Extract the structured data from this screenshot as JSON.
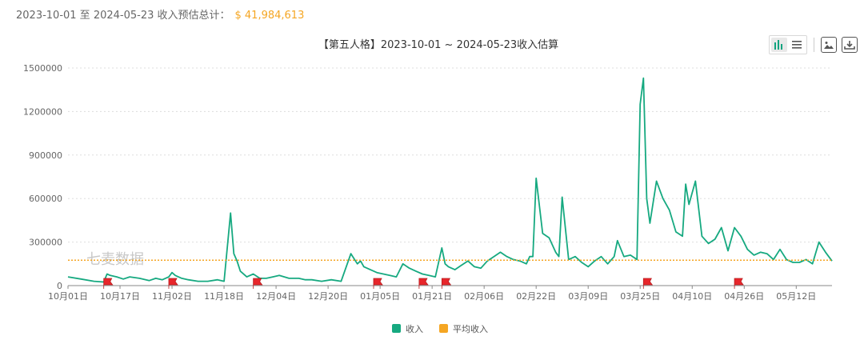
{
  "summary": {
    "date_range": "2023-10-01 至 2024-05-23 收入预估总计：",
    "total": "$ 41,984,613"
  },
  "toolbar": {
    "icons": [
      "bar-chart-icon",
      "list-icon",
      "image-icon",
      "download-icon"
    ],
    "active_color": "#10a37f"
  },
  "chart_data": {
    "type": "line",
    "title": "【第五人格】2023-10-01 ~ 2024-05-23收入估算",
    "watermark": "七麦数据",
    "xlabel": "",
    "ylabel": "",
    "x_range": [
      "2023-10-01",
      "2024-05-23"
    ],
    "x_ticks": [
      "10月01日",
      "10月17日",
      "11月02日",
      "11月18日",
      "12月04日",
      "12月20日",
      "01月05日",
      "01月21日",
      "02月06日",
      "02月22日",
      "03月09日",
      "03月25日",
      "04月10日",
      "04月26日",
      "05月12日"
    ],
    "y_ticks": [
      "0",
      "300000",
      "600000",
      "900000",
      "1200000",
      "1500000"
    ],
    "ylim": [
      0,
      1500000
    ],
    "grid": true,
    "legend_position": "bottom",
    "series": [
      {
        "name": "收入",
        "color": "#16a980",
        "x": [
          "2023-10-01",
          "2023-10-05",
          "2023-10-09",
          "2023-10-12",
          "2023-10-13",
          "2023-10-14",
          "2023-10-16",
          "2023-10-18",
          "2023-10-20",
          "2023-10-23",
          "2023-10-26",
          "2023-10-28",
          "2023-10-30",
          "2023-11-01",
          "2023-11-02",
          "2023-11-03",
          "2023-11-05",
          "2023-11-07",
          "2023-11-10",
          "2023-11-13",
          "2023-11-16",
          "2023-11-18",
          "2023-11-20",
          "2023-11-21",
          "2023-11-22",
          "2023-11-23",
          "2023-11-25",
          "2023-11-27",
          "2023-11-29",
          "2023-12-01",
          "2023-12-03",
          "2023-12-05",
          "2023-12-08",
          "2023-12-11",
          "2023-12-13",
          "2023-12-15",
          "2023-12-18",
          "2023-12-21",
          "2023-12-24",
          "2023-12-27",
          "2023-12-29",
          "2023-12-30",
          "2023-12-31",
          "2024-01-02",
          "2024-01-04",
          "2024-01-06",
          "2024-01-08",
          "2024-01-10",
          "2024-01-12",
          "2024-01-14",
          "2024-01-16",
          "2024-01-18",
          "2024-01-20",
          "2024-01-22",
          "2024-01-24",
          "2024-01-25",
          "2024-01-26",
          "2024-01-28",
          "2024-01-30",
          "2024-02-01",
          "2024-02-03",
          "2024-02-05",
          "2024-02-07",
          "2024-02-09",
          "2024-02-11",
          "2024-02-13",
          "2024-02-15",
          "2024-02-17",
          "2024-02-19",
          "2024-02-20",
          "2024-02-21",
          "2024-02-22",
          "2024-02-24",
          "2024-02-26",
          "2024-02-28",
          "2024-02-29",
          "2024-03-01",
          "2024-03-03",
          "2024-03-05",
          "2024-03-07",
          "2024-03-09",
          "2024-03-11",
          "2024-03-13",
          "2024-03-15",
          "2024-03-17",
          "2024-03-18",
          "2024-03-20",
          "2024-03-22",
          "2024-03-24",
          "2024-03-25",
          "2024-03-26",
          "2024-03-27",
          "2024-03-28",
          "2024-03-30",
          "2024-04-01",
          "2024-04-03",
          "2024-04-05",
          "2024-04-07",
          "2024-04-08",
          "2024-04-09",
          "2024-04-11",
          "2024-04-13",
          "2024-04-15",
          "2024-04-17",
          "2024-04-19",
          "2024-04-21",
          "2024-04-23",
          "2024-04-25",
          "2024-04-27",
          "2024-04-29",
          "2024-05-01",
          "2024-05-03",
          "2024-05-05",
          "2024-05-07",
          "2024-05-09",
          "2024-05-11",
          "2024-05-13",
          "2024-05-15",
          "2024-05-17",
          "2024-05-19",
          "2024-05-21",
          "2024-05-23"
        ],
        "values": [
          60000,
          45000,
          30000,
          25000,
          80000,
          70000,
          60000,
          45000,
          60000,
          50000,
          35000,
          50000,
          40000,
          60000,
          90000,
          70000,
          50000,
          40000,
          30000,
          30000,
          40000,
          30000,
          500000,
          220000,
          170000,
          100000,
          60000,
          80000,
          50000,
          50000,
          60000,
          70000,
          50000,
          50000,
          40000,
          40000,
          30000,
          40000,
          30000,
          220000,
          150000,
          170000,
          130000,
          110000,
          90000,
          80000,
          70000,
          60000,
          150000,
          120000,
          100000,
          80000,
          70000,
          60000,
          260000,
          150000,
          130000,
          110000,
          140000,
          170000,
          130000,
          120000,
          170000,
          200000,
          230000,
          200000,
          180000,
          170000,
          150000,
          200000,
          200000,
          740000,
          360000,
          330000,
          230000,
          200000,
          610000,
          180000,
          200000,
          160000,
          130000,
          170000,
          200000,
          150000,
          200000,
          310000,
          200000,
          210000,
          180000,
          1250000,
          1430000,
          600000,
          430000,
          720000,
          600000,
          520000,
          370000,
          340000,
          700000,
          560000,
          720000,
          340000,
          290000,
          320000,
          400000,
          240000,
          400000,
          340000,
          250000,
          210000,
          230000,
          220000,
          180000,
          250000,
          180000,
          160000,
          160000,
          180000,
          150000,
          300000,
          230000,
          170000
        ]
      },
      {
        "name": "平均收入",
        "color": "#f5a623",
        "values": [
          175000
        ]
      }
    ],
    "event_flags": [
      "2023-10-12",
      "2023-11-01",
      "2023-11-27",
      "2024-01-03",
      "2024-01-17",
      "2024-01-24",
      "2024-03-26",
      "2024-04-23"
    ]
  }
}
